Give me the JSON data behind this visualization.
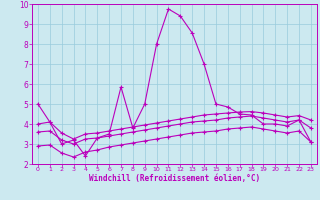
{
  "xlabel": "Windchill (Refroidissement éolien,°C)",
  "xlim": [
    -0.5,
    23.5
  ],
  "ylim": [
    2,
    10
  ],
  "xticks": [
    0,
    1,
    2,
    3,
    4,
    5,
    6,
    7,
    8,
    9,
    10,
    11,
    12,
    13,
    14,
    15,
    16,
    17,
    18,
    19,
    20,
    21,
    22,
    23
  ],
  "yticks": [
    2,
    3,
    4,
    5,
    6,
    7,
    8,
    9,
    10
  ],
  "bg_color": "#cce9f0",
  "line_color": "#bb00bb",
  "grid_color": "#99ccdd",
  "series1_x": [
    0,
    1,
    2,
    3,
    4,
    5,
    6,
    7,
    8,
    9,
    10,
    11,
    12,
    13,
    14,
    15,
    16,
    17,
    18,
    19,
    20,
    21,
    22,
    23
  ],
  "series1_y": [
    5.0,
    4.1,
    3.0,
    3.2,
    2.4,
    3.3,
    3.5,
    5.85,
    3.8,
    5.0,
    8.0,
    9.75,
    9.4,
    8.55,
    7.0,
    5.0,
    4.85,
    4.5,
    4.45,
    4.0,
    4.0,
    3.9,
    4.2,
    3.1
  ],
  "series2_x": [
    0,
    1,
    2,
    3,
    4,
    5,
    6,
    7,
    8,
    9,
    10,
    11,
    12,
    13,
    14,
    15,
    16,
    17,
    18,
    19,
    20,
    21,
    22,
    23
  ],
  "series2_y": [
    4.0,
    4.1,
    3.55,
    3.25,
    3.5,
    3.55,
    3.65,
    3.75,
    3.85,
    3.95,
    4.05,
    4.15,
    4.25,
    4.35,
    4.45,
    4.5,
    4.55,
    4.6,
    4.62,
    4.55,
    4.45,
    4.35,
    4.42,
    4.2
  ],
  "series3_x": [
    0,
    1,
    2,
    3,
    4,
    5,
    6,
    7,
    8,
    9,
    10,
    11,
    12,
    13,
    14,
    15,
    16,
    17,
    18,
    19,
    20,
    21,
    22,
    23
  ],
  "series3_y": [
    3.6,
    3.65,
    3.2,
    3.0,
    3.25,
    3.3,
    3.4,
    3.5,
    3.6,
    3.7,
    3.8,
    3.9,
    4.0,
    4.1,
    4.15,
    4.2,
    4.3,
    4.35,
    4.4,
    4.3,
    4.2,
    4.1,
    4.2,
    3.8
  ],
  "series4_x": [
    0,
    1,
    2,
    3,
    4,
    5,
    6,
    7,
    8,
    9,
    10,
    11,
    12,
    13,
    14,
    15,
    16,
    17,
    18,
    19,
    20,
    21,
    22,
    23
  ],
  "series4_y": [
    2.9,
    2.95,
    2.55,
    2.35,
    2.6,
    2.7,
    2.85,
    2.95,
    3.05,
    3.15,
    3.25,
    3.35,
    3.45,
    3.55,
    3.6,
    3.65,
    3.75,
    3.8,
    3.85,
    3.75,
    3.65,
    3.55,
    3.65,
    3.1
  ]
}
